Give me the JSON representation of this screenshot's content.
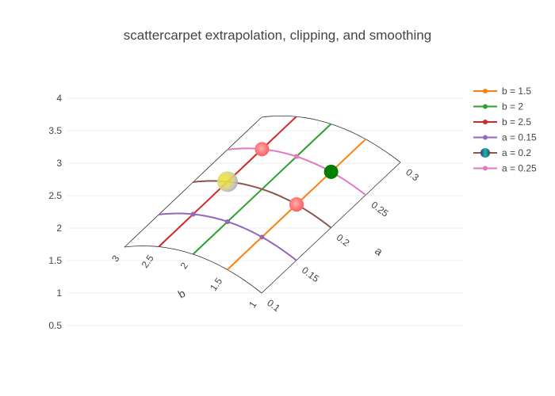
{
  "chart_data": {
    "type": "scatter",
    "subtype": "carpet",
    "title": "scattercarpet extrapolation, clipping, and smoothing",
    "y_axis": {
      "ticks": [
        "0.5",
        "1",
        "1.5",
        "2",
        "2.5",
        "3",
        "3.5",
        "4"
      ],
      "range": [
        0.25,
        4.3
      ],
      "grid": true
    },
    "carpet": {
      "a_axis": {
        "title": "a",
        "ticks": [
          "0.1",
          "0.15",
          "0.2",
          "0.25",
          "0.3"
        ],
        "values": [
          0.1,
          0.15,
          0.2,
          0.25,
          0.3
        ]
      },
      "b_axis": {
        "title": "b",
        "ticks": [
          "1",
          "1.5",
          "2",
          "2.5",
          "3"
        ],
        "values": [
          1,
          1.5,
          2,
          2.5,
          3
        ]
      },
      "grid_color": "#333333"
    },
    "legend": {
      "placement": "right",
      "entries": [
        {
          "label": "b = 1.5",
          "color": "#ff7f0e"
        },
        {
          "label": "b = 2",
          "color": "#2ca02c"
        },
        {
          "label": "b = 2.5",
          "color": "#d62728"
        },
        {
          "label": "a = 0.15",
          "color": "#9467bd"
        },
        {
          "label": "a = 0.2",
          "color": "#8c564b",
          "marker": "gradient-circle"
        },
        {
          "label": "a = 0.25",
          "color": "#e377c2"
        }
      ]
    },
    "series": [
      {
        "name": "b = 1.5",
        "color": "#ff7f0e",
        "b": 1.5,
        "a": [
          0.1,
          0.15,
          0.2,
          0.25,
          0.3
        ],
        "markers_at_a": [
          0.15,
          0.25
        ]
      },
      {
        "name": "b = 2",
        "color": "#2ca02c",
        "b": 2,
        "a": [
          0.1,
          0.15,
          0.2,
          0.25,
          0.3
        ],
        "markers_at_a": [
          0.15,
          0.25
        ]
      },
      {
        "name": "b = 2.5",
        "color": "#d62728",
        "b": 2.5,
        "a": [
          0.1,
          0.15,
          0.2,
          0.25,
          0.3
        ],
        "markers_at_a": [
          0.15,
          0.25
        ]
      },
      {
        "name": "a = 0.15",
        "color": "#9467bd",
        "a": 0.15,
        "b": [
          1,
          1.5,
          2,
          2.5,
          3
        ],
        "markers_at_b": [
          1.5,
          2,
          2.5
        ]
      },
      {
        "name": "a = 0.2",
        "color": "#8c564b",
        "a": 0.2,
        "b": [
          1,
          1.5,
          2,
          2.5,
          3
        ]
      },
      {
        "name": "a = 0.25",
        "color": "#e377c2",
        "a": 0.25,
        "b": [
          1,
          1.5,
          2,
          2.5,
          3
        ],
        "markers_at_b": [
          1.5,
          2,
          2.5
        ]
      }
    ],
    "large_markers": [
      {
        "a": 0.25,
        "b": 1.5,
        "color": "#008000"
      },
      {
        "a": 0.2,
        "b": 1.5,
        "color": "#ff6666"
      },
      {
        "a": 0.25,
        "b": 2.5,
        "color": "#ff6666"
      },
      {
        "a": 0.2,
        "b": 2.5,
        "color": "#bfb9e6",
        "gradient_to": "#f2ea2a"
      }
    ]
  }
}
